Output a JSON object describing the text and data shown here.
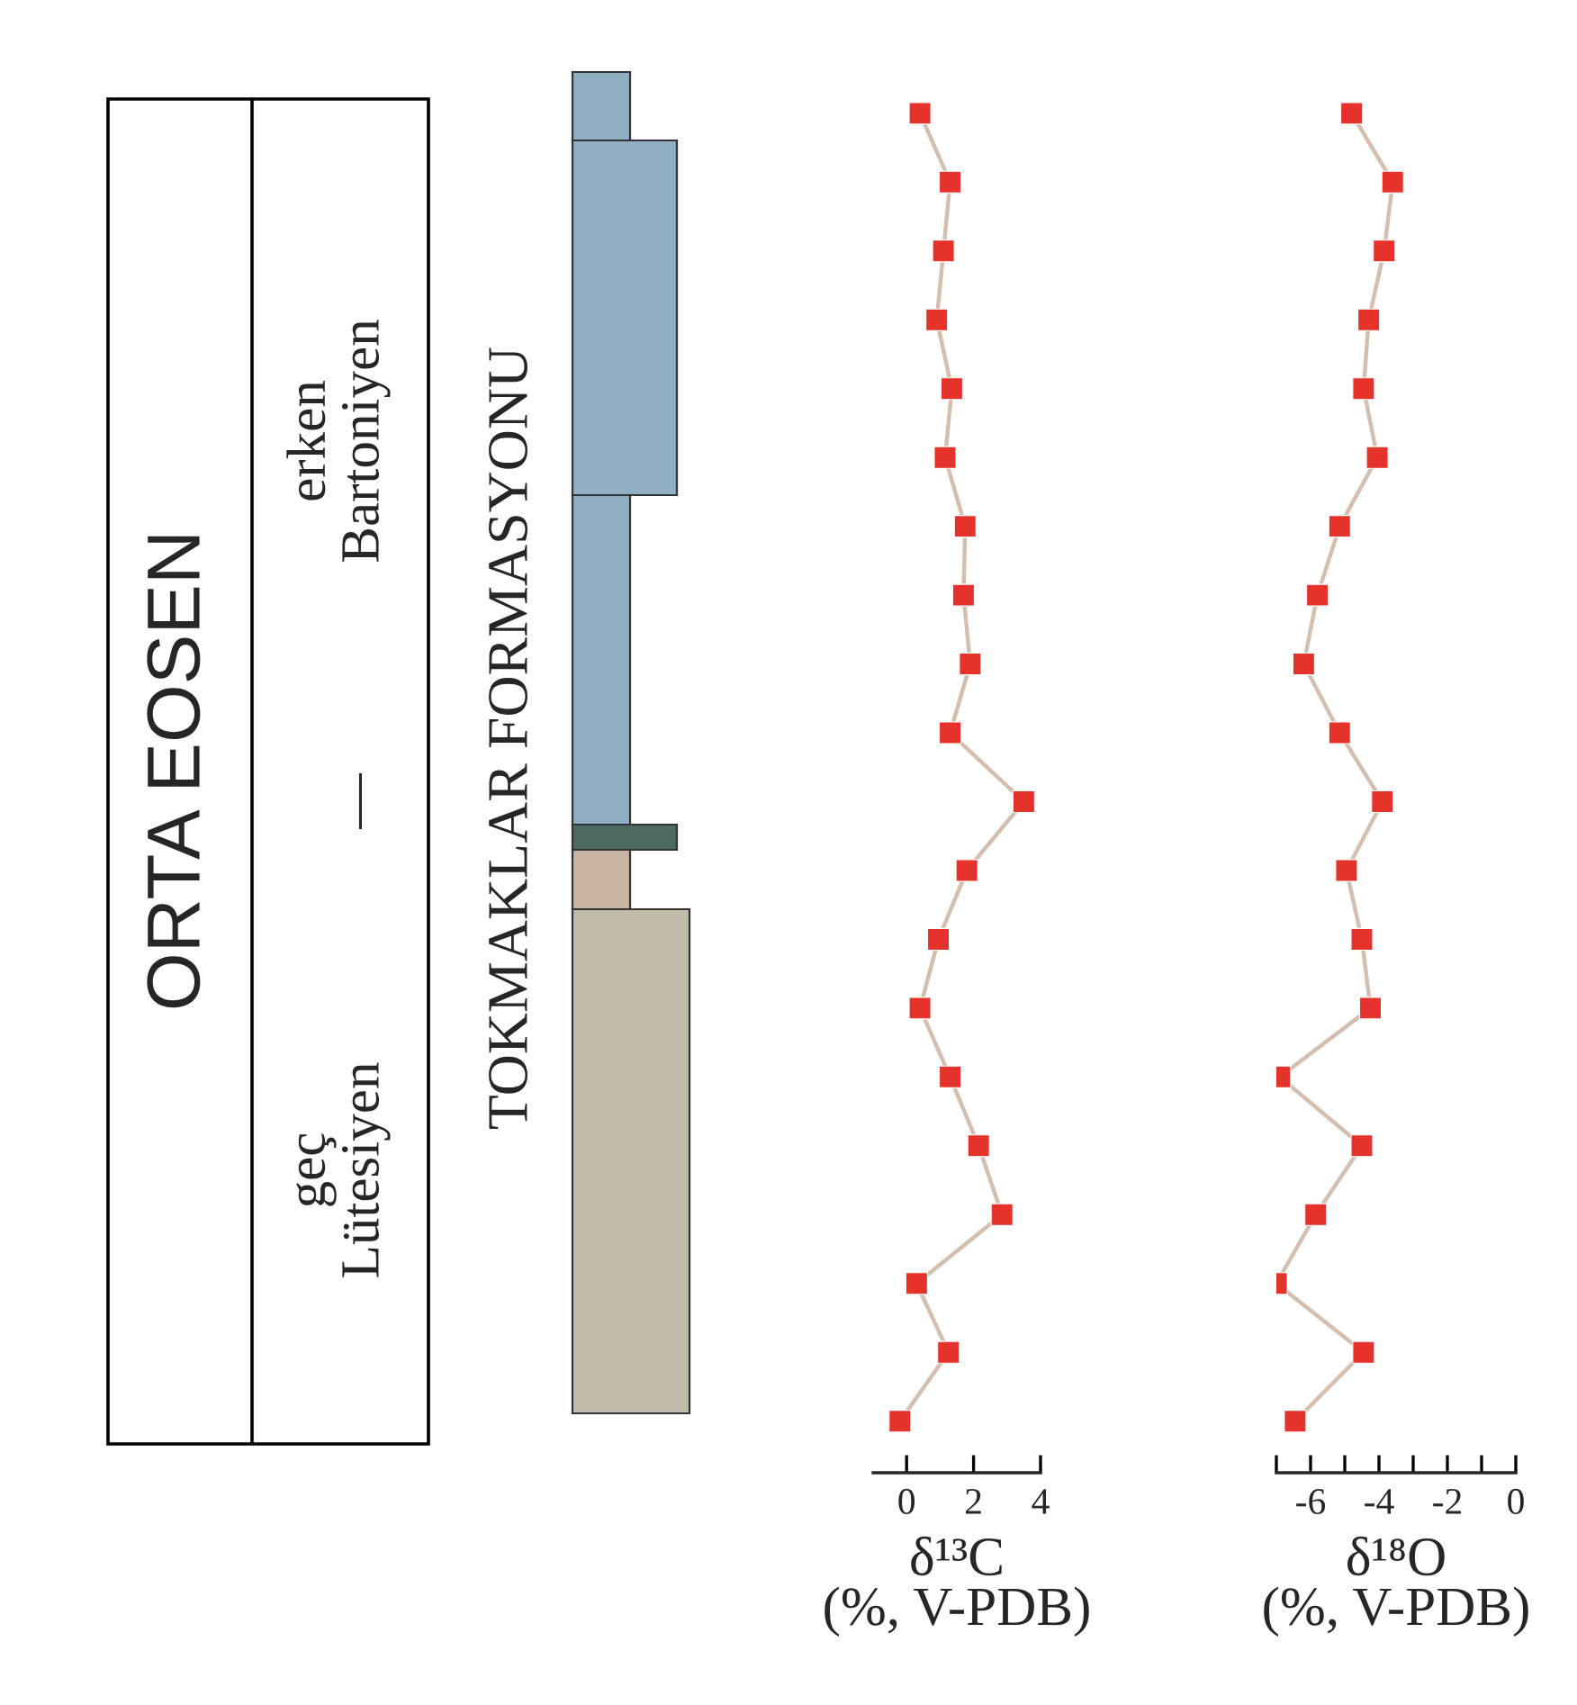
{
  "chart_data": [
    {
      "type": "other",
      "annotations": [
        "ORTA EOSEN",
        "erken\nBartoniyen",
        "—",
        "geç\nLütesiyen",
        "TOKMAKLAR FORMASYONU"
      ]
    },
    {
      "type": "line",
      "orientation": "horizontal",
      "categories": [
        null,
        null,
        null,
        null,
        null,
        null,
        null,
        null,
        null,
        null,
        null,
        null,
        null,
        null,
        null,
        null,
        null,
        null,
        null,
        null
      ],
      "series": [
        {
          "color": "#d4bfae",
          "colors": [
            "#e5322a",
            "#e5322a",
            "#e5322a",
            "#e5322a",
            "#e5322a",
            "#e5322a",
            "#e5322a",
            "#e5322a",
            "#e5322a",
            "#e5322a",
            "#e5322a",
            "#e5322a",
            "#e5322a",
            "#e5322a",
            "#e5322a",
            "#e5322a",
            "#e5322a",
            "#e5322a",
            "#e5322a",
            "#e5322a"
          ],
          "values": [
            0.4,
            1.3,
            1.1,
            0.9,
            1.35,
            1.15,
            1.75,
            1.7,
            1.9,
            1.3,
            3.5,
            1.8,
            0.95,
            0.4,
            1.3,
            2.15,
            2.85,
            0.3,
            1.25,
            -0.2
          ]
        }
      ],
      "xlim": [
        -1,
        4
      ],
      "xticks": [
        0,
        2,
        4
      ],
      "xlabel": "δ¹³C\n(%, V-PDB)",
      "marker": "square",
      "line_style": "solid",
      "grid": false,
      "tick_labels": "x"
    },
    {
      "type": "line",
      "orientation": "horizontal",
      "categories": [
        null,
        null,
        null,
        null,
        null,
        null,
        null,
        null,
        null,
        null,
        null,
        null,
        null,
        null,
        null,
        null,
        null,
        null,
        null,
        null
      ],
      "series": [
        {
          "color": "#d4bfae",
          "colors": [
            "#e5322a",
            "#e5322a",
            "#e5322a",
            "#e5322a",
            "#e5322a",
            "#e5322a",
            "#e5322a",
            "#e5322a",
            "#e5322a",
            "#e5322a",
            "#e5322a",
            "#e5322a",
            "#e5322a",
            "#e5322a",
            "#e5322a",
            "#e5322a",
            "#e5322a",
            "#e5322a",
            "#e5322a",
            "#e5322a"
          ],
          "values": [
            -4.8,
            -3.6,
            -3.85,
            -4.3,
            -4.45,
            -4.05,
            -5.15,
            -5.8,
            -6.2,
            -5.15,
            -3.9,
            -4.95,
            -4.5,
            -4.25,
            -6.9,
            -4.5,
            -5.85,
            -7.0,
            -4.45,
            -6.45
          ]
        }
      ],
      "xlim": [
        -7,
        0
      ],
      "xticks": [
        {
          "value": -7,
          "label": null
        },
        -6,
        {
          "value": -5,
          "label": null
        },
        -4,
        {
          "value": -3,
          "label": null
        },
        -2,
        {
          "value": -1,
          "label": null
        },
        0
      ],
      "xlabel": "δ¹⁸O\n(%, V-PDB)",
      "marker": "square",
      "line_style": "solid",
      "grid": false,
      "tick_labels": "x"
    }
  ]
}
